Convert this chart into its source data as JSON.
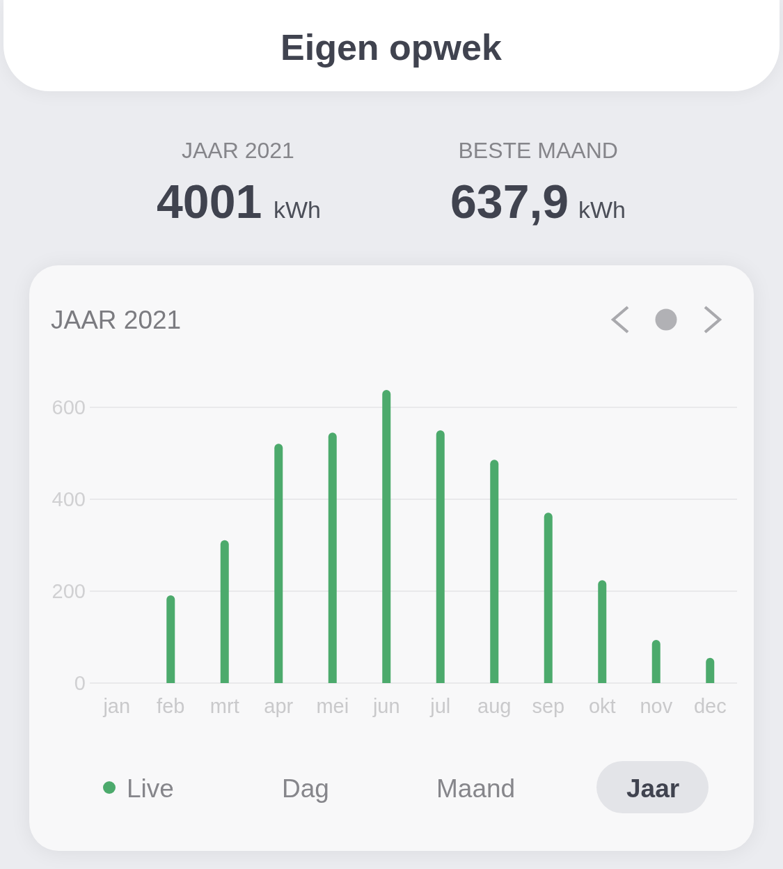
{
  "chart_data": {
    "type": "bar",
    "title": "Eigen opwek",
    "subtitle": "JAAR 2021",
    "categories": [
      "jan",
      "feb",
      "mrt",
      "apr",
      "mei",
      "jun",
      "jul",
      "aug",
      "sep",
      "okt",
      "nov",
      "dec"
    ],
    "values": [
      null,
      191,
      311,
      521,
      545,
      638,
      550,
      486,
      371,
      224,
      94,
      55
    ],
    "color": "#4caa6c",
    "ylim": [
      0,
      638
    ],
    "yticks": [
      0,
      200,
      400,
      600
    ],
    "grid": "y",
    "annotations": [
      "JAAR 2021",
      "4001",
      "kWh",
      "BESTE MAAND",
      "637,9",
      "kWh",
      "Live",
      "Dag",
      "Maand",
      "Jaar"
    ]
  }
}
